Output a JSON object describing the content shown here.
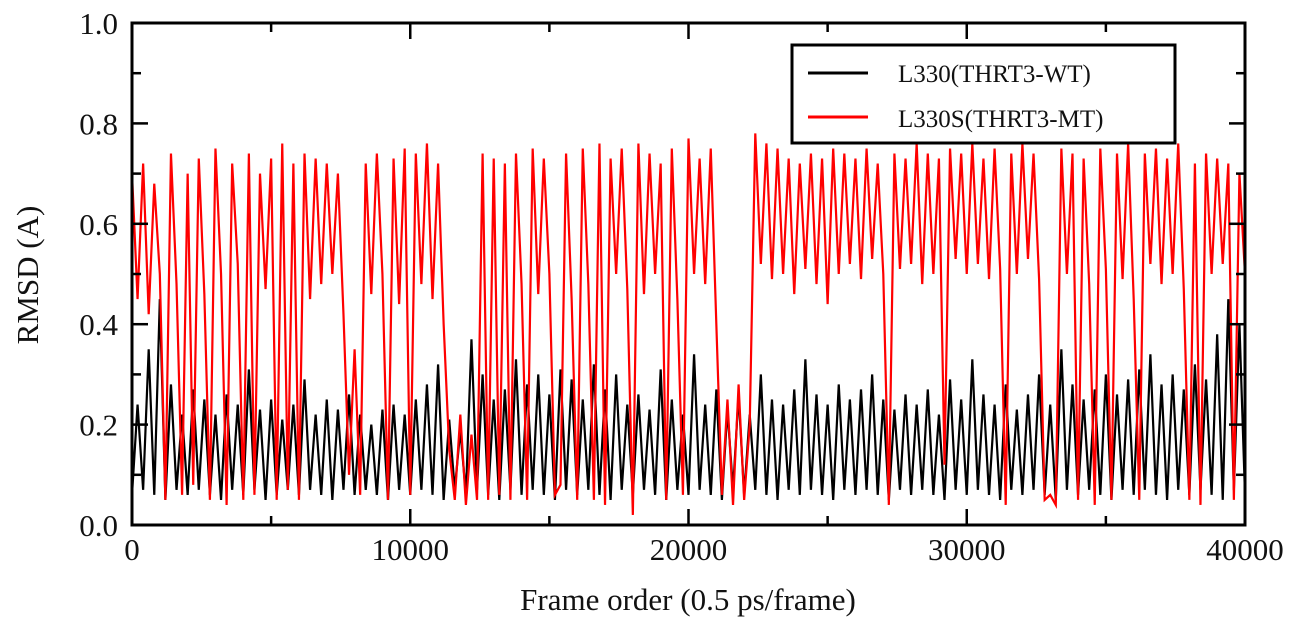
{
  "chart_data": {
    "type": "line",
    "title": "",
    "xlabel": "Frame order (0.5 ps/frame)",
    "ylabel": "RMSD (A)",
    "xlim": [
      0,
      40000
    ],
    "ylim": [
      0.0,
      1.0
    ],
    "xticks": [
      0,
      10000,
      20000,
      30000,
      40000
    ],
    "xtick_labels": [
      "0",
      "10000",
      "20000",
      "30000",
      "40000"
    ],
    "yticks": [
      0.0,
      0.2,
      0.4,
      0.6,
      0.8,
      1.0
    ],
    "ytick_labels": [
      "0.0",
      "0.2",
      "0.4",
      "0.6",
      "0.8",
      "1.0"
    ],
    "grid": false,
    "legend_position": "top-right",
    "x_start": 0,
    "x_step": 200,
    "series": [
      {
        "name": "L330(THRT3-WT)",
        "color": "#000000",
        "values": [
          0.06,
          0.24,
          0.07,
          0.35,
          0.06,
          0.45,
          0.05,
          0.28,
          0.07,
          0.22,
          0.06,
          0.27,
          0.07,
          0.25,
          0.06,
          0.22,
          0.05,
          0.26,
          0.07,
          0.24,
          0.06,
          0.31,
          0.07,
          0.23,
          0.05,
          0.25,
          0.06,
          0.21,
          0.07,
          0.24,
          0.06,
          0.29,
          0.07,
          0.22,
          0.06,
          0.25,
          0.05,
          0.23,
          0.07,
          0.26,
          0.06,
          0.22,
          0.07,
          0.2,
          0.06,
          0.23,
          0.05,
          0.24,
          0.07,
          0.22,
          0.06,
          0.25,
          0.07,
          0.28,
          0.06,
          0.32,
          0.05,
          0.21,
          0.07,
          0.19,
          0.06,
          0.37,
          0.07,
          0.3,
          0.06,
          0.25,
          0.05,
          0.27,
          0.07,
          0.33,
          0.06,
          0.28,
          0.07,
          0.3,
          0.06,
          0.26,
          0.05,
          0.31,
          0.07,
          0.29,
          0.06,
          0.25,
          0.07,
          0.32,
          0.06,
          0.27,
          0.05,
          0.3,
          0.07,
          0.24,
          0.06,
          0.26,
          0.07,
          0.23,
          0.06,
          0.31,
          0.05,
          0.25,
          0.07,
          0.22,
          0.06,
          0.34,
          0.07,
          0.24,
          0.06,
          0.27,
          0.05,
          0.23,
          0.07,
          0.26,
          0.06,
          0.22,
          0.07,
          0.3,
          0.06,
          0.25,
          0.05,
          0.24,
          0.07,
          0.27,
          0.06,
          0.33,
          0.07,
          0.26,
          0.06,
          0.24,
          0.05,
          0.28,
          0.07,
          0.25,
          0.06,
          0.27,
          0.07,
          0.3,
          0.06,
          0.25,
          0.05,
          0.23,
          0.07,
          0.26,
          0.06,
          0.24,
          0.07,
          0.27,
          0.06,
          0.22,
          0.05,
          0.29,
          0.07,
          0.25,
          0.06,
          0.33,
          0.07,
          0.26,
          0.06,
          0.24,
          0.05,
          0.28,
          0.07,
          0.23,
          0.06,
          0.26,
          0.07,
          0.3,
          0.06,
          0.24,
          0.05,
          0.35,
          0.07,
          0.28,
          0.06,
          0.25,
          0.07,
          0.27,
          0.06,
          0.3,
          0.05,
          0.26,
          0.07,
          0.29,
          0.06,
          0.31,
          0.07,
          0.34,
          0.06,
          0.28,
          0.05,
          0.3,
          0.07,
          0.27,
          0.06,
          0.32,
          0.07,
          0.29,
          0.06,
          0.38,
          0.05,
          0.45,
          0.07,
          0.4,
          0.06
        ]
      },
      {
        "name": "L330S(THRT3-MT)",
        "color": "#ff0000",
        "values": [
          0.7,
          0.45,
          0.72,
          0.42,
          0.68,
          0.5,
          0.05,
          0.74,
          0.48,
          0.06,
          0.7,
          0.08,
          0.73,
          0.46,
          0.05,
          0.75,
          0.5,
          0.04,
          0.72,
          0.52,
          0.05,
          0.74,
          0.06,
          0.7,
          0.47,
          0.73,
          0.05,
          0.76,
          0.07,
          0.72,
          0.05,
          0.74,
          0.45,
          0.73,
          0.48,
          0.72,
          0.5,
          0.7,
          0.42,
          0.1,
          0.35,
          0.06,
          0.72,
          0.46,
          0.74,
          0.5,
          0.05,
          0.73,
          0.44,
          0.75,
          0.06,
          0.74,
          0.48,
          0.76,
          0.45,
          0.72,
          0.4,
          0.15,
          0.05,
          0.22,
          0.04,
          0.18,
          0.05,
          0.74,
          0.05,
          0.73,
          0.06,
          0.72,
          0.05,
          0.74,
          0.48,
          0.05,
          0.75,
          0.46,
          0.73,
          0.5,
          0.06,
          0.08,
          0.74,
          0.45,
          0.05,
          0.75,
          0.48,
          0.05,
          0.76,
          0.04,
          0.73,
          0.5,
          0.75,
          0.47,
          0.02,
          0.76,
          0.46,
          0.74,
          0.5,
          0.72,
          0.05,
          0.75,
          0.45,
          0.06,
          0.77,
          0.5,
          0.73,
          0.48,
          0.75,
          0.4,
          0.06,
          0.25,
          0.04,
          0.28,
          0.05,
          0.2,
          0.78,
          0.52,
          0.76,
          0.49,
          0.75,
          0.5,
          0.73,
          0.46,
          0.72,
          0.51,
          0.74,
          0.48,
          0.73,
          0.44,
          0.75,
          0.5,
          0.74,
          0.52,
          0.73,
          0.49,
          0.75,
          0.53,
          0.72,
          0.5,
          0.04,
          0.74,
          0.51,
          0.73,
          0.52,
          0.76,
          0.48,
          0.74,
          0.5,
          0.73,
          0.12,
          0.75,
          0.53,
          0.74,
          0.5,
          0.76,
          0.52,
          0.73,
          0.49,
          0.75,
          0.51,
          0.04,
          0.74,
          0.5,
          0.76,
          0.53,
          0.74,
          0.49,
          0.05,
          0.06,
          0.04,
          0.75,
          0.5,
          0.74,
          0.05,
          0.73,
          0.48,
          0.04,
          0.75,
          0.51,
          0.05,
          0.74,
          0.49,
          0.76,
          0.45,
          0.05,
          0.74,
          0.52,
          0.75,
          0.48,
          0.73,
          0.5,
          0.76,
          0.47,
          0.05,
          0.72,
          0.04,
          0.74,
          0.5,
          0.73,
          0.52,
          0.72,
          0.05,
          0.7,
          0.5
        ]
      }
    ]
  }
}
